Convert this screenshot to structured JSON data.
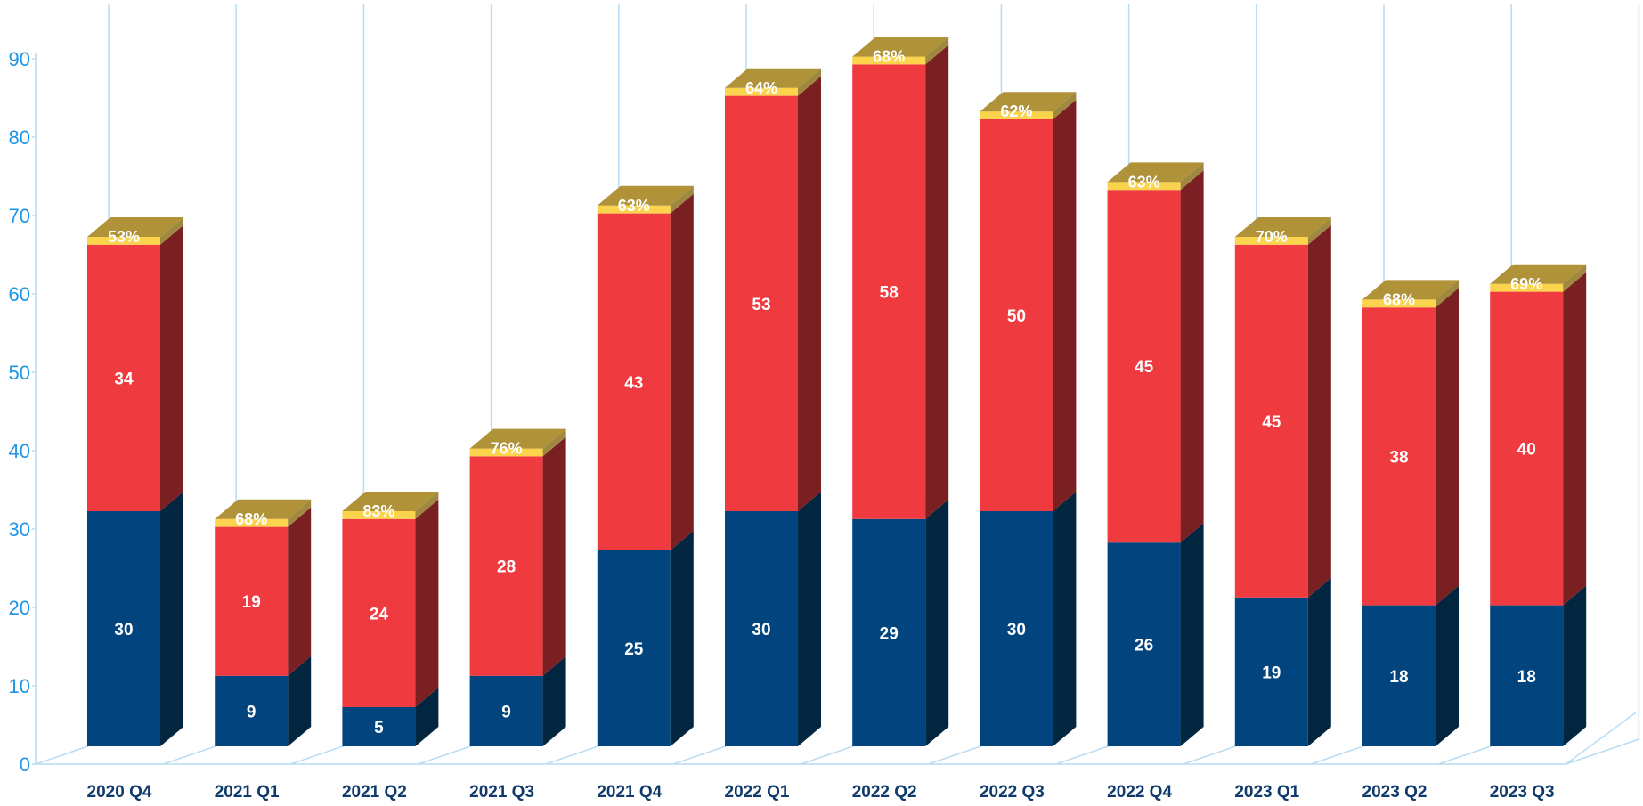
{
  "chart_data": {
    "type": "bar",
    "stacked": true,
    "three_d": true,
    "categories": [
      "2020 Q4",
      "2021 Q1",
      "2021 Q2",
      "2021 Q3",
      "2021 Q4",
      "2022 Q1",
      "2022 Q2",
      "2022 Q3",
      "2022 Q4",
      "2023 Q1",
      "2023 Q2",
      "2023 Q3"
    ],
    "series": [
      {
        "values": [
          30,
          9,
          5,
          9,
          25,
          30,
          29,
          30,
          26,
          19,
          18,
          18
        ],
        "labels": [
          "30",
          "9",
          "5",
          "9",
          "25",
          "30",
          "29",
          "30",
          "26",
          "19",
          "18",
          "18"
        ]
      },
      {
        "values": [
          34,
          19,
          24,
          28,
          43,
          53,
          58,
          50,
          45,
          45,
          38,
          40
        ],
        "labels": [
          "34",
          "19",
          "24",
          "28",
          "43",
          "53",
          "58",
          "50",
          "45",
          "45",
          "38",
          "40"
        ]
      },
      {
        "values": [
          1,
          1,
          1,
          1,
          1,
          1,
          1,
          1,
          1,
          1,
          1,
          1
        ],
        "labels": [
          "53%",
          "68%",
          "83%",
          "76%",
          "63%",
          "64%",
          "68%",
          "62%",
          "63%",
          "70%",
          "68%",
          "69%"
        ]
      }
    ],
    "y_ticks": [
      "0",
      "10",
      "20",
      "30",
      "40",
      "50",
      "60",
      "70",
      "80",
      "90"
    ],
    "ylim": [
      0,
      90
    ],
    "grid": "vertical",
    "legend": "none",
    "title": "",
    "xlabel": "",
    "ylabel": ""
  },
  "colors": {
    "series": [
      "#02457e",
      "#ef3b40",
      "#fcd34d"
    ],
    "grid": "#b9dcf3",
    "ticks": "#1e96e6",
    "categories": "#0f3a6b"
  }
}
